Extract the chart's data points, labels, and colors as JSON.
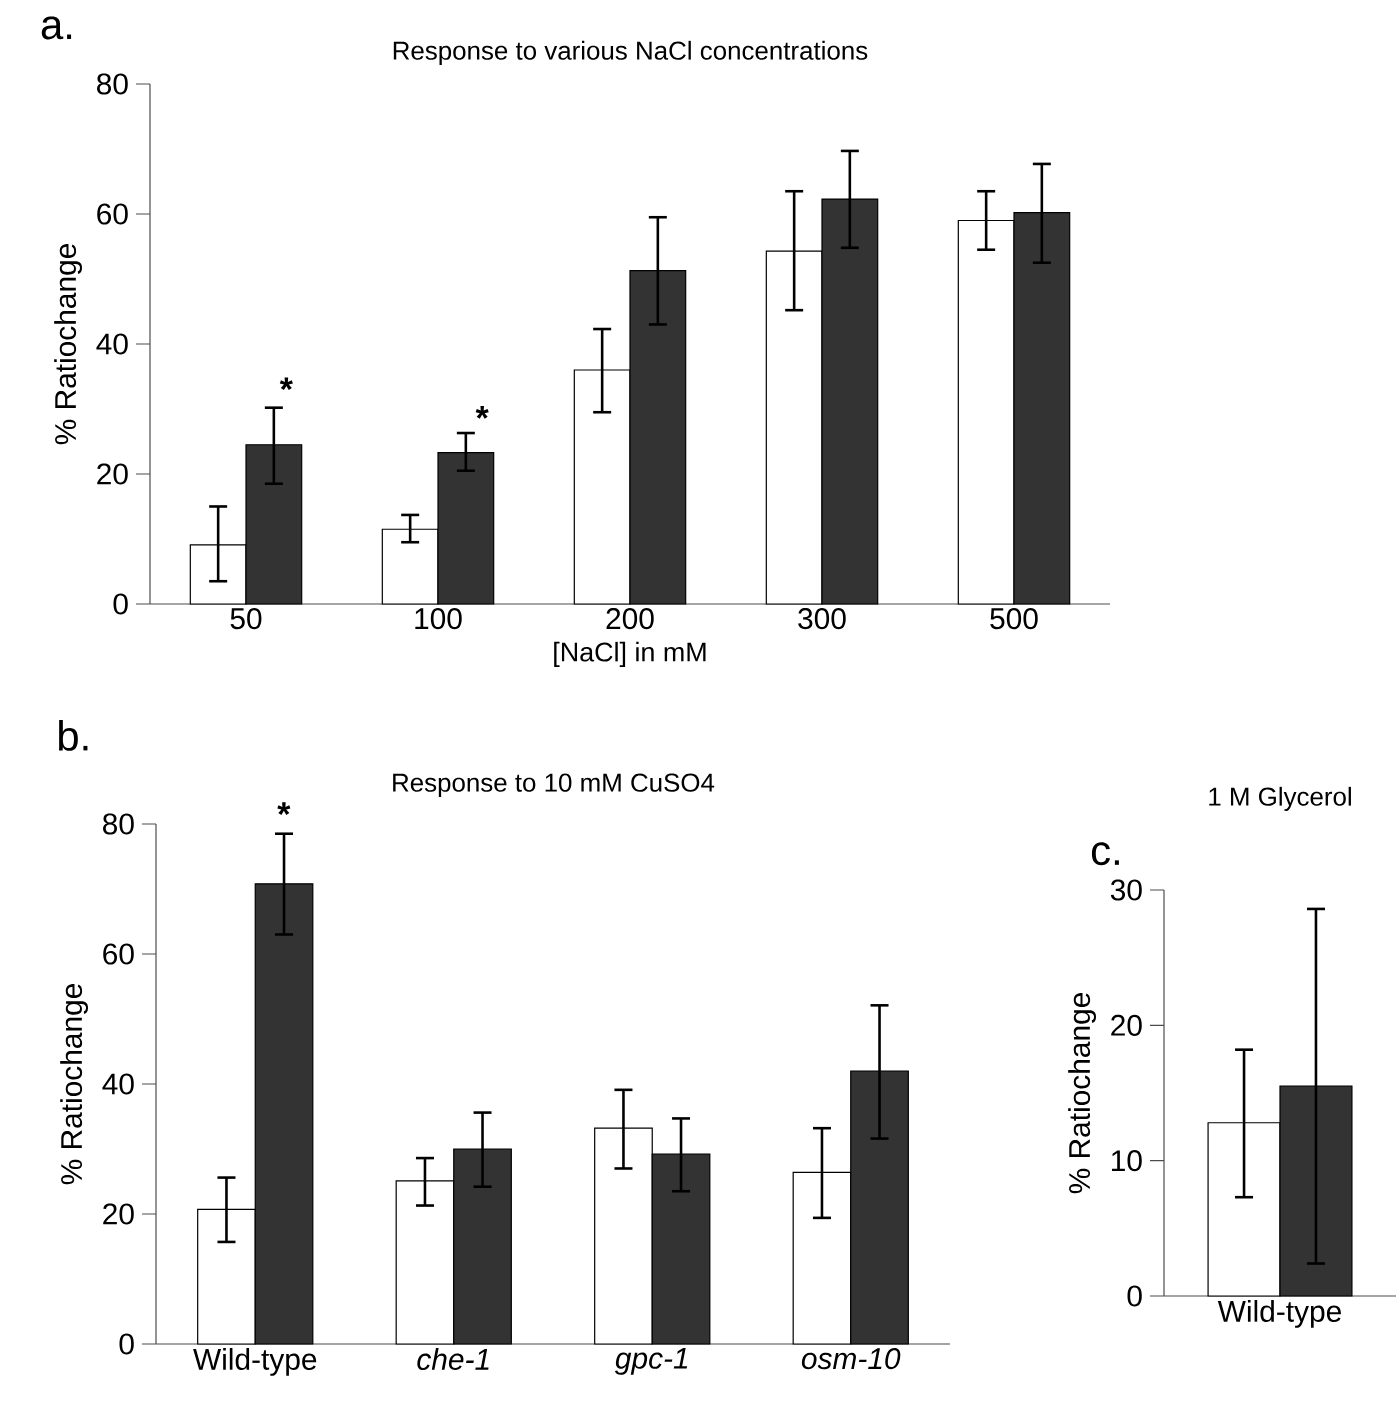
{
  "chart_data": [
    {
      "type": "bar",
      "title": "Response to various NaCl concentrations",
      "xlabel": "[NaCl] in mM",
      "ylabel": "% Ratiochange",
      "categories": [
        "50",
        "100",
        "200",
        "300",
        "500"
      ],
      "series": [
        {
          "color": "#ffffff",
          "values": [
            9.1,
            11.5,
            36,
            54.3,
            59
          ],
          "errors": [
            [
              3.5,
              15
            ],
            [
              9.5,
              13.7
            ],
            [
              29.5,
              42.3
            ],
            [
              45.2,
              63.5
            ],
            [
              54.5,
              63.5
            ]
          ]
        },
        {
          "color": "#333333",
          "values": [
            24.5,
            23.3,
            51.3,
            62.3,
            60.2
          ],
          "errors": [
            [
              18.5,
              30.2
            ],
            [
              20.5,
              26.3
            ],
            [
              43,
              59.5
            ],
            [
              54.8,
              69.7
            ],
            [
              52.5,
              67.7
            ]
          ]
        }
      ],
      "ylim": [
        0,
        80
      ],
      "yticks": [
        0,
        20,
        40,
        60,
        80
      ],
      "annotations": [
        "a.",
        "*",
        "*"
      ]
    },
    {
      "type": "bar",
      "title": "Response to 10 mM CuSO4",
      "ylabel": "% Ratiochange",
      "categories": [
        "Wild-type",
        "*che-1*",
        "*gpc-1*",
        "*osm-10*"
      ],
      "series": [
        {
          "color": "#ffffff",
          "values": [
            20.7,
            25.1,
            33.2,
            26.4
          ],
          "errors": [
            [
              15.7,
              25.6
            ],
            [
              21.3,
              28.6
            ],
            [
              27,
              39.1
            ],
            [
              19.4,
              33.2
            ]
          ]
        },
        {
          "color": "#333333",
          "values": [
            70.8,
            30,
            29.2,
            42
          ],
          "errors": [
            [
              63,
              78.5
            ],
            [
              24.2,
              35.6
            ],
            [
              23.5,
              34.7
            ],
            [
              31.6,
              52.1
            ]
          ]
        }
      ],
      "ylim": [
        0,
        80
      ],
      "yticks": [
        0,
        20,
        40,
        60,
        80
      ],
      "annotations": [
        "b.",
        "*"
      ]
    },
    {
      "type": "bar",
      "title": "1 M Glycerol",
      "ylabel": "% Ratiochange",
      "categories": [
        "Wild-type"
      ],
      "series": [
        {
          "color": "#ffffff",
          "values": [
            12.8
          ],
          "errors": [
            [
              7.3,
              18.2
            ]
          ]
        },
        {
          "color": "#333333",
          "values": [
            15.5
          ],
          "errors": [
            [
              2.4,
              28.6
            ]
          ]
        }
      ],
      "ylim": [
        0,
        30
      ],
      "yticks": [
        0,
        10,
        20,
        30
      ],
      "annotations": [
        "c."
      ]
    }
  ]
}
